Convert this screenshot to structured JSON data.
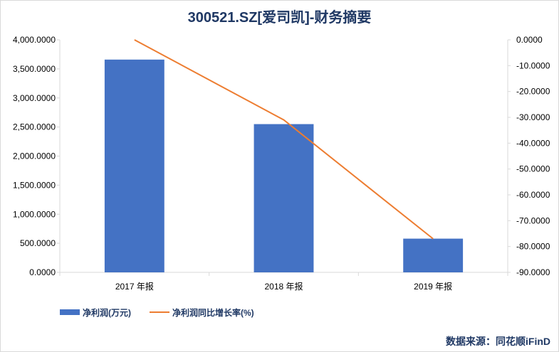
{
  "colors": {
    "bar": "#4472c4",
    "line": "#ed7d31",
    "title": "#1f3864",
    "axis": "#d9d9d9"
  },
  "source": "数据来源：同花顺iFinD",
  "chart_data": {
    "type": "bar",
    "title": "300521.SZ[爱司凯]-财务摘要",
    "categories": [
      "2017 年报",
      "2018 年报",
      "2019 年报"
    ],
    "series": [
      {
        "name": "净利润(万元)",
        "type": "bar",
        "axis": "left",
        "values": [
          3660,
          2550,
          580
        ]
      },
      {
        "name": "净利润同比增长率(%)",
        "type": "line",
        "axis": "right",
        "values": [
          0,
          -31,
          -77
        ]
      }
    ],
    "y_left": {
      "ylim": [
        0,
        4000
      ],
      "ticks": [
        "0.0000",
        "500.0000",
        "1,000.0000",
        "1,500.0000",
        "2,000.0000",
        "2,500.0000",
        "3,000.0000",
        "3,500.0000",
        "4,000.0000"
      ],
      "tick_values": [
        0,
        500,
        1000,
        1500,
        2000,
        2500,
        3000,
        3500,
        4000
      ]
    },
    "y_right": {
      "ylim": [
        -90,
        0
      ],
      "ticks": [
        "0.0000",
        "-10.0000",
        "-20.0000",
        "-30.0000",
        "-40.0000",
        "-50.0000",
        "-60.0000",
        "-70.0000",
        "-80.0000",
        "-90.0000"
      ],
      "tick_values": [
        0,
        -10,
        -20,
        -30,
        -40,
        -50,
        -60,
        -70,
        -80,
        -90
      ]
    },
    "grid": false,
    "legend": "bottom-left"
  }
}
